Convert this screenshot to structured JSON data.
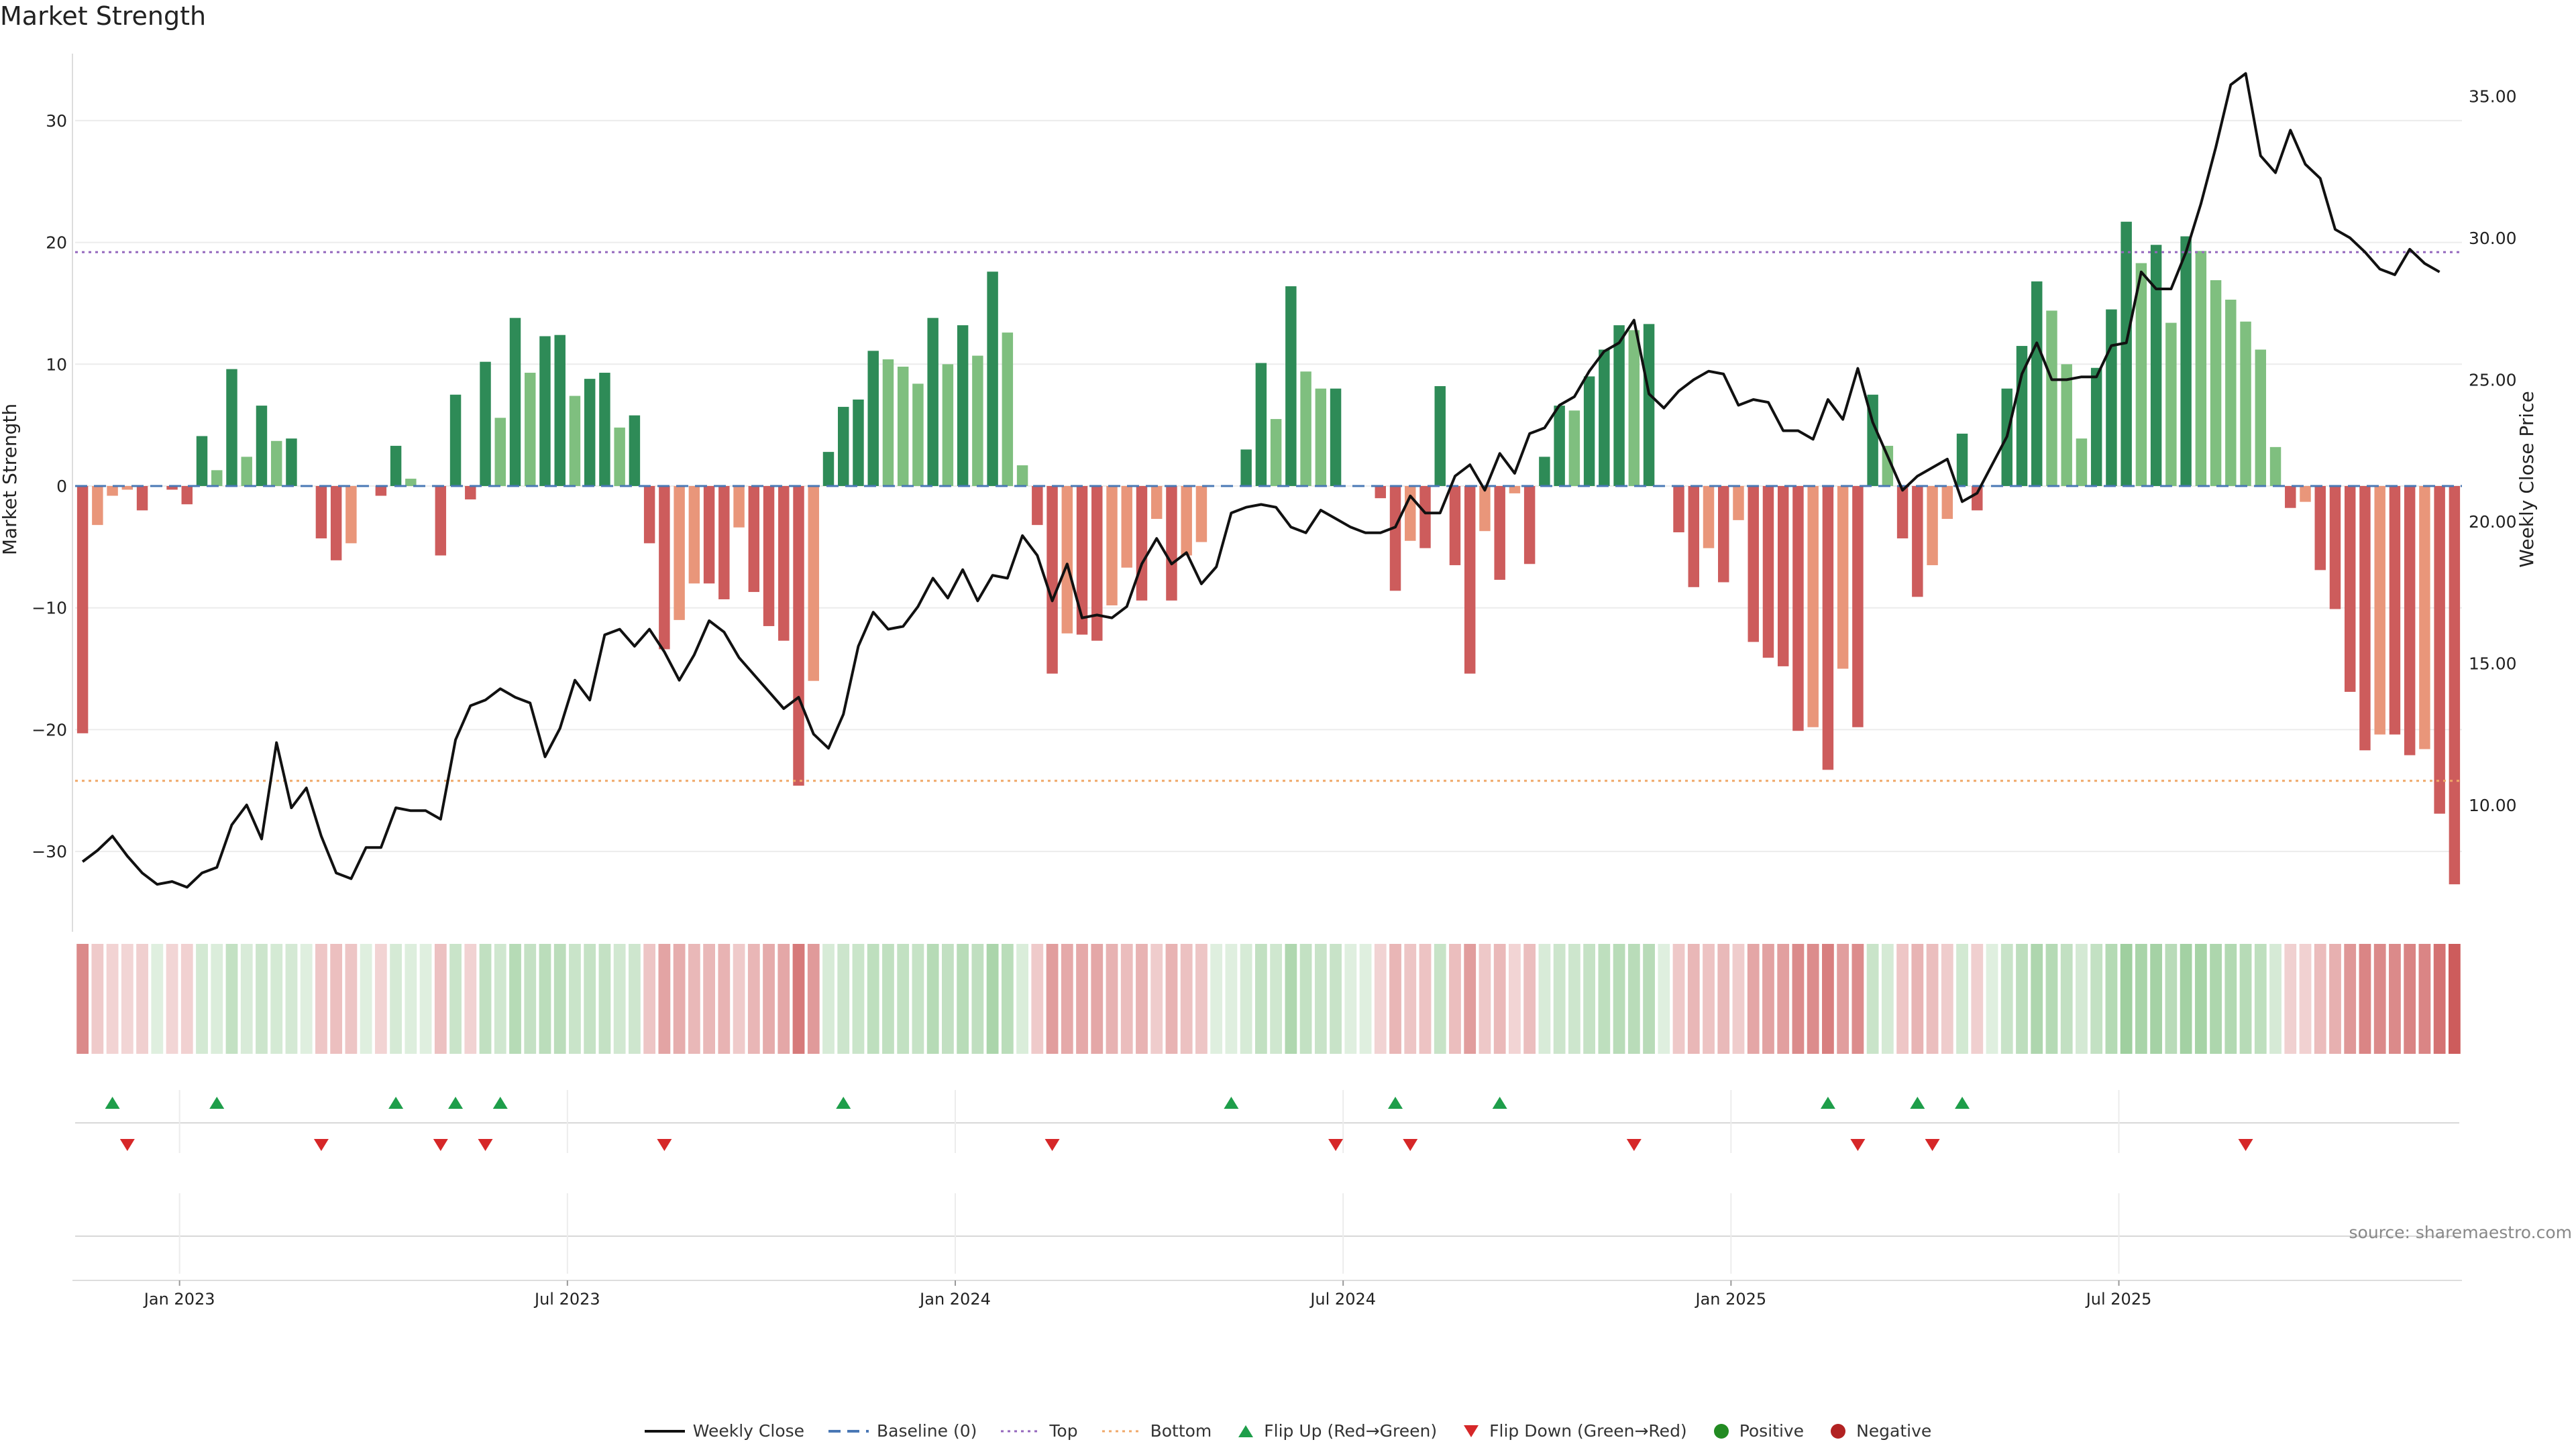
{
  "title": "Market Strength",
  "source": "source: sharemaestro.com",
  "colors": {
    "posDark": "#2e8b57",
    "posLight": "#7fbf7f",
    "negDark": "#cd5c5c",
    "negLight": "#e9967a",
    "close": "#111111",
    "baseline": "#4a78b5",
    "top": "#9467bd",
    "bottom": "#f0a868",
    "flipUp": "#1e9e4a",
    "flipDown": "#d62728",
    "positive": "#228b22",
    "negative": "#b22222"
  },
  "legend": [
    {
      "key": "close",
      "label": "Weekly Close",
      "symbol": "line-solid",
      "color": "#111111"
    },
    {
      "key": "baseline",
      "label": "Baseline (0)",
      "symbol": "line-dash",
      "color": "#4a78b5"
    },
    {
      "key": "top",
      "label": "Top",
      "symbol": "line-dot",
      "color": "#9467bd"
    },
    {
      "key": "bottom",
      "label": "Bottom",
      "symbol": "line-dot",
      "color": "#f0a868"
    },
    {
      "key": "flipUp",
      "label": "Flip Up (Red→Green)",
      "symbol": "tri-up",
      "color": "#1e9e4a"
    },
    {
      "key": "flipDown",
      "label": "Flip Down (Green→Red)",
      "symbol": "tri-down",
      "color": "#d62728"
    },
    {
      "key": "positive",
      "label": "Positive",
      "symbol": "dot",
      "color": "#228b22"
    },
    {
      "key": "negative",
      "label": "Negative",
      "symbol": "dot",
      "color": "#b22222"
    }
  ],
  "chart_data": {
    "type": "bar",
    "ylabel": "Market Strength",
    "y2label": "Weekly Close Price",
    "ylim": [
      -35.5,
      35.5
    ],
    "y2lim": [
      6.0,
      36.5
    ],
    "yticks": [
      -30,
      -20,
      -10,
      0,
      10,
      20,
      30
    ],
    "ytick_labels": [
      "−30",
      "−20",
      "−10",
      "0",
      "10",
      "20",
      "30"
    ],
    "y2ticks": [
      10,
      15,
      20,
      25,
      30,
      35
    ],
    "y2tick_labels": [
      "10.00",
      "15.00",
      "20.00",
      "25.00",
      "30.00",
      "35.00"
    ],
    "xticks": [
      7,
      33,
      59,
      85,
      111,
      137
    ],
    "xtick_labels": [
      "Jan 2023",
      "Jul 2023",
      "Jan 2024",
      "Jul 2024",
      "Jan 2025",
      "Jul 2025"
    ],
    "top_line": 19.2,
    "bottom_line": -24.2,
    "strength": [
      -20.3,
      -3.2,
      -0.8,
      -0.3,
      -2.0,
      0,
      -0.3,
      -1.5,
      4.1,
      1.3,
      9.6,
      2.4,
      6.6,
      3.7,
      3.9,
      0,
      -4.3,
      -6.1,
      -4.7,
      0,
      -0.8,
      3.3,
      0.6,
      0,
      -5.7,
      7.5,
      -1.1,
      10.2,
      5.6,
      13.8,
      9.3,
      12.3,
      12.4,
      7.4,
      8.8,
      9.3,
      4.8,
      5.8,
      -4.7,
      -13.4,
      -11.0,
      -8.0,
      -8.0,
      -9.3,
      -3.4,
      -8.7,
      -11.5,
      -12.7,
      -24.6,
      -16.0,
      2.8,
      6.5,
      7.1,
      11.1,
      10.4,
      9.8,
      8.4,
      13.8,
      10.0,
      13.2,
      10.7,
      17.6,
      12.6,
      1.7,
      -3.2,
      -15.4,
      -12.1,
      -12.2,
      -12.7,
      -9.8,
      -6.7,
      -9.4,
      -2.7,
      -9.4,
      -5.7,
      -4.6,
      0,
      0,
      3.0,
      10.1,
      5.5,
      16.4,
      9.4,
      8.0,
      8.0,
      0,
      0,
      -1.0,
      -8.6,
      -4.5,
      -5.1,
      8.2,
      -6.5,
      -15.4,
      -3.7,
      -7.7,
      -0.6,
      -6.4,
      2.4,
      6.6,
      6.2,
      9.0,
      11.2,
      13.2,
      12.8,
      13.3,
      0,
      -3.8,
      -8.3,
      -5.1,
      -7.9,
      -2.8,
      -12.8,
      -14.1,
      -14.8,
      -20.1,
      -19.8,
      -23.3,
      -15.0,
      -19.8,
      7.5,
      3.3,
      -4.3,
      -9.1,
      -6.5,
      -2.7,
      4.3,
      -2.0,
      0,
      8.0,
      11.5,
      16.8,
      14.4,
      10.0,
      3.9,
      9.7,
      14.5,
      21.7,
      18.3,
      19.8,
      13.4,
      20.5,
      19.3,
      16.9,
      15.3,
      13.5,
      11.2,
      3.2,
      -1.8,
      -1.3,
      -6.9,
      -10.1,
      -16.9,
      -21.7,
      -20.4,
      -20.4,
      -22.1,
      -21.6,
      -26.9,
      -32.7
    ],
    "close": [
      8.0,
      8.4,
      8.9,
      8.2,
      7.6,
      7.2,
      7.3,
      7.1,
      7.6,
      7.8,
      9.3,
      10.0,
      8.8,
      12.2,
      9.9,
      10.6,
      8.9,
      7.6,
      7.4,
      8.5,
      8.5,
      9.9,
      9.8,
      9.8,
      9.5,
      12.3,
      13.5,
      13.7,
      14.1,
      13.8,
      13.6,
      11.7,
      12.7,
      14.4,
      13.7,
      16.0,
      16.2,
      15.6,
      16.2,
      15.4,
      14.4,
      15.3,
      16.5,
      16.1,
      15.2,
      14.6,
      14.0,
      13.4,
      13.8,
      12.5,
      12.0,
      13.2,
      15.6,
      16.8,
      16.2,
      16.3,
      17.0,
      18.0,
      17.3,
      18.3,
      17.2,
      18.1,
      18.0,
      19.5,
      18.8,
      17.2,
      18.5,
      16.6,
      16.7,
      16.6,
      17.0,
      18.5,
      19.4,
      18.5,
      18.9,
      17.8,
      18.4,
      20.3,
      20.5,
      20.6,
      20.5,
      19.8,
      19.6,
      20.4,
      20.1,
      19.8,
      19.6,
      19.6,
      19.8,
      20.9,
      20.3,
      20.3,
      21.6,
      22.0,
      21.1,
      22.4,
      21.7,
      23.1,
      23.3,
      24.1,
      24.4,
      25.3,
      26.0,
      26.3,
      27.1,
      24.5,
      24.0,
      24.6,
      25.0,
      25.3,
      25.2,
      24.1,
      24.3,
      24.2,
      23.2,
      23.2,
      22.9,
      24.3,
      23.6,
      25.4,
      23.5,
      22.3,
      21.1,
      21.6,
      21.9,
      22.2,
      20.7,
      21.0,
      22.0,
      23.0,
      25.2,
      26.3,
      25.0,
      25.0,
      25.1,
      25.1,
      26.2,
      26.3,
      28.8,
      28.2,
      28.2,
      29.5,
      31.2,
      33.2,
      35.4,
      35.8,
      32.9,
      32.3,
      33.8,
      32.6,
      32.1,
      30.3,
      30.0,
      29.5,
      28.9,
      28.7,
      29.6,
      29.1,
      28.8
    ],
    "flip_up": [
      2,
      9,
      21,
      25,
      28,
      51,
      77,
      88,
      95,
      117,
      123,
      126
    ],
    "flip_down": [
      3,
      16,
      24,
      27,
      39,
      65,
      84,
      89,
      104,
      119,
      124,
      145
    ]
  }
}
